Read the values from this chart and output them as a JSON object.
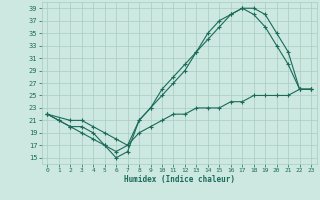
{
  "xlabel": "Humidex (Indice chaleur)",
  "bg_color": "#cce8e0",
  "grid_color": "#a8ccc5",
  "line_color": "#1a6b5a",
  "xlim": [
    -0.5,
    23.5
  ],
  "ylim": [
    14,
    40
  ],
  "yticks": [
    15,
    17,
    19,
    21,
    23,
    25,
    27,
    29,
    31,
    33,
    35,
    37,
    39
  ],
  "xticks": [
    0,
    1,
    2,
    3,
    4,
    5,
    6,
    7,
    8,
    9,
    10,
    11,
    12,
    13,
    14,
    15,
    16,
    17,
    18,
    19,
    20,
    21,
    22,
    23
  ],
  "line1_x": [
    0,
    1,
    2,
    3,
    4,
    5,
    6,
    7,
    8,
    9,
    10,
    11,
    12,
    13,
    14,
    15,
    16,
    17,
    18,
    19,
    20,
    21,
    22,
    23
  ],
  "line1_y": [
    22,
    21,
    20,
    20,
    19,
    17,
    15,
    16,
    21,
    23,
    26,
    28,
    30,
    32,
    35,
    37,
    38,
    39,
    38,
    36,
    33,
    30,
    26,
    26
  ],
  "line2_x": [
    0,
    1,
    2,
    3,
    4,
    5,
    6,
    7,
    8,
    9,
    10,
    11,
    12,
    13,
    14,
    15,
    16,
    17,
    18,
    19,
    20,
    21,
    22,
    23
  ],
  "line2_y": [
    22,
    21,
    20,
    19,
    18,
    17,
    16,
    17,
    19,
    20,
    21,
    22,
    22,
    23,
    23,
    23,
    24,
    24,
    25,
    25,
    25,
    25,
    26,
    26
  ],
  "line3_x": [
    0,
    2,
    3,
    4,
    5,
    6,
    7,
    8,
    9,
    10,
    11,
    12,
    13,
    14,
    15,
    16,
    17,
    18,
    19,
    20,
    21,
    22,
    23
  ],
  "line3_y": [
    22,
    21,
    21,
    20,
    19,
    18,
    17,
    21,
    23,
    25,
    27,
    29,
    32,
    34,
    36,
    38,
    39,
    39,
    38,
    35,
    32,
    26,
    26
  ]
}
